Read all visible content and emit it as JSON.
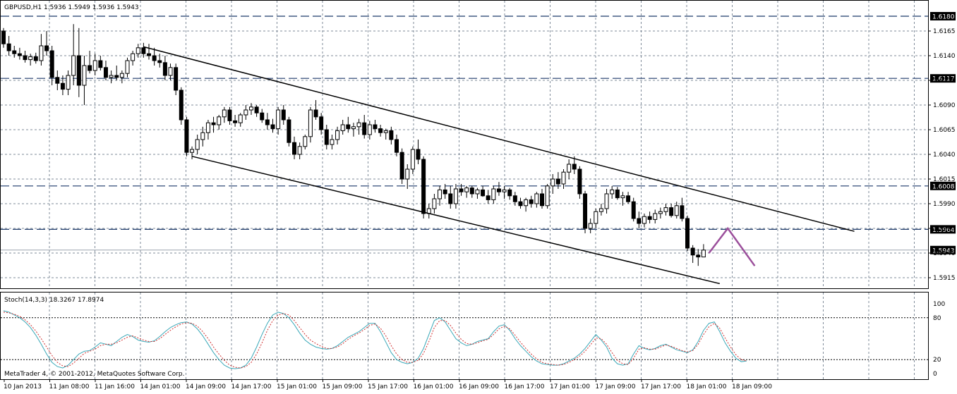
{
  "chart_data": [
    {
      "type": "candlestick",
      "title": "GBPUSD,H1  1.5936 1.5949 1.5936 1.5943",
      "y_ticks": [
        "1.6165",
        "1.6140",
        "1.6115",
        "1.6090",
        "1.6065",
        "1.6040",
        "1.6015",
        "1.5990",
        "1.5965",
        "1.5940",
        "1.5915"
      ],
      "ylim": [
        1.5905,
        1.6195
      ],
      "x_labels": [
        "10 Jan 2013",
        "11 Jan 08:00",
        "11 Jan 16:00",
        "14 Jan 01:00",
        "14 Jan 09:00",
        "14 Jan 17:00",
        "15 Jan 01:00",
        "15 Jan 09:00",
        "15 Jan 17:00",
        "16 Jan 01:00",
        "16 Jan 09:00",
        "16 Jan 17:00",
        "17 Jan 01:00",
        "17 Jan 09:00",
        "17 Jan 17:00",
        "18 Jan 01:00",
        "18 Jan 09:00"
      ],
      "levels": [
        {
          "value": 1.618,
          "label": "1.6180",
          "style": "dash"
        },
        {
          "value": 1.6117,
          "label": "1.6117",
          "style": "dash"
        },
        {
          "value": 1.6008,
          "label": "1.6008",
          "style": "dash"
        },
        {
          "value": 1.5964,
          "label": "1.5964",
          "style": "dash"
        },
        {
          "value": 1.5943,
          "label": "1.5943",
          "style": "solid"
        }
      ],
      "channel_upper": [
        {
          "bar": 26,
          "y": 1.6149
        },
        {
          "bar": 158,
          "y": 1.5962
        }
      ],
      "channel_lower": [
        {
          "bar": 35,
          "y": 1.6038
        },
        {
          "bar": 133,
          "y": 1.5909
        }
      ],
      "forecast_path": [
        {
          "bar": 131,
          "y": 1.594
        },
        {
          "bar": 134.5,
          "y": 1.5965
        },
        {
          "bar": 139.5,
          "y": 1.5927
        }
      ],
      "candles": [
        [
          1.6165,
          1.6168,
          1.6148,
          1.6152
        ],
        [
          1.6152,
          1.616,
          1.614,
          1.6145
        ],
        [
          1.6145,
          1.615,
          1.6138,
          1.6142
        ],
        [
          1.6142,
          1.6148,
          1.6136,
          1.614
        ],
        [
          1.614,
          1.6145,
          1.6133,
          1.6136
        ],
        [
          1.6136,
          1.6142,
          1.613,
          1.6139
        ],
        [
          1.6139,
          1.6143,
          1.6132,
          1.6135
        ],
        [
          1.6135,
          1.6162,
          1.613,
          1.615
        ],
        [
          1.615,
          1.6165,
          1.614,
          1.6145
        ],
        [
          1.6145,
          1.615,
          1.611,
          1.6118
        ],
        [
          1.6118,
          1.6125,
          1.6105,
          1.6112
        ],
        [
          1.6112,
          1.612,
          1.61,
          1.6106
        ],
        [
          1.6106,
          1.6125,
          1.61,
          1.612
        ],
        [
          1.612,
          1.6172,
          1.611,
          1.614
        ],
        [
          1.614,
          1.6168,
          1.6098,
          1.611
        ],
        [
          1.611,
          1.614,
          1.609,
          1.613
        ],
        [
          1.613,
          1.6145,
          1.6122,
          1.6125
        ],
        [
          1.6125,
          1.6142,
          1.612,
          1.6135
        ],
        [
          1.6135,
          1.614,
          1.6125,
          1.6128
        ],
        [
          1.6128,
          1.6135,
          1.6115,
          1.6118
        ],
        [
          1.6118,
          1.6125,
          1.6112,
          1.612
        ],
        [
          1.612,
          1.613,
          1.6115,
          1.6118
        ],
        [
          1.6118,
          1.6125,
          1.6112,
          1.6122
        ],
        [
          1.6122,
          1.6138,
          1.6118,
          1.6135
        ],
        [
          1.6135,
          1.6145,
          1.613,
          1.6142
        ],
        [
          1.6142,
          1.6152,
          1.6138,
          1.6148
        ],
        [
          1.6148,
          1.6153,
          1.6138,
          1.6142
        ],
        [
          1.6142,
          1.6152,
          1.6136,
          1.614
        ],
        [
          1.614,
          1.6148,
          1.613,
          1.6135
        ],
        [
          1.6135,
          1.6142,
          1.6128,
          1.6133
        ],
        [
          1.6133,
          1.614,
          1.6115,
          1.612
        ],
        [
          1.612,
          1.6132,
          1.6115,
          1.6128
        ],
        [
          1.6128,
          1.6132,
          1.61,
          1.6105
        ],
        [
          1.6105,
          1.6108,
          1.607,
          1.6075
        ],
        [
          1.6075,
          1.6078,
          1.6038,
          1.6042
        ],
        [
          1.6042,
          1.6048,
          1.6035,
          1.6045
        ],
        [
          1.6045,
          1.606,
          1.604,
          1.6055
        ],
        [
          1.6055,
          1.6068,
          1.6048,
          1.6062
        ],
        [
          1.6062,
          1.6075,
          1.6055,
          1.6072
        ],
        [
          1.6072,
          1.6078,
          1.6062,
          1.607
        ],
        [
          1.607,
          1.608,
          1.6065,
          1.6078
        ],
        [
          1.6078,
          1.6088,
          1.6072,
          1.6085
        ],
        [
          1.6085,
          1.6088,
          1.607,
          1.6074
        ],
        [
          1.6074,
          1.608,
          1.6068,
          1.6072
        ],
        [
          1.6072,
          1.6082,
          1.6068,
          1.608
        ],
        [
          1.608,
          1.609,
          1.6075,
          1.6085
        ],
        [
          1.6085,
          1.6092,
          1.608,
          1.6088
        ],
        [
          1.6088,
          1.609,
          1.6078,
          1.6082
        ],
        [
          1.6082,
          1.6086,
          1.6072,
          1.6075
        ],
        [
          1.6075,
          1.6082,
          1.6065,
          1.607
        ],
        [
          1.607,
          1.6076,
          1.6062,
          1.6066
        ],
        [
          1.6066,
          1.6088,
          1.606,
          1.6085
        ],
        [
          1.6085,
          1.609,
          1.607,
          1.6075
        ],
        [
          1.6075,
          1.6078,
          1.6048,
          1.6052
        ],
        [
          1.6052,
          1.6058,
          1.6035,
          1.604
        ],
        [
          1.604,
          1.6052,
          1.6035,
          1.6048
        ],
        [
          1.6048,
          1.606,
          1.6045,
          1.6058
        ],
        [
          1.6058,
          1.6088,
          1.6052,
          1.6085
        ],
        [
          1.6085,
          1.6095,
          1.6075,
          1.6078
        ],
        [
          1.6078,
          1.6082,
          1.606,
          1.6065
        ],
        [
          1.6065,
          1.607,
          1.6045,
          1.605
        ],
        [
          1.605,
          1.606,
          1.6045,
          1.6055
        ],
        [
          1.6055,
          1.6068,
          1.605,
          1.6064
        ],
        [
          1.6064,
          1.6075,
          1.606,
          1.607
        ],
        [
          1.607,
          1.6078,
          1.6062,
          1.6066
        ],
        [
          1.6066,
          1.6072,
          1.6058,
          1.6068
        ],
        [
          1.6068,
          1.6076,
          1.606,
          1.6072
        ],
        [
          1.6072,
          1.608,
          1.6056,
          1.606
        ],
        [
          1.606,
          1.6074,
          1.6055,
          1.607
        ],
        [
          1.607,
          1.6075,
          1.6062,
          1.6066
        ],
        [
          1.6066,
          1.607,
          1.6058,
          1.6062
        ],
        [
          1.6062,
          1.6066,
          1.6055,
          1.6064
        ],
        [
          1.6064,
          1.6068,
          1.605,
          1.6055
        ],
        [
          1.6055,
          1.606,
          1.6038,
          1.6042
        ],
        [
          1.6042,
          1.6046,
          1.601,
          1.6015
        ],
        [
          1.6015,
          1.603,
          1.6005,
          1.6025
        ],
        [
          1.6025,
          1.6048,
          1.602,
          1.6045
        ],
        [
          1.6045,
          1.6055,
          1.603,
          1.6035
        ],
        [
          1.6035,
          1.6038,
          1.5975,
          1.598
        ],
        [
          1.598,
          1.599,
          1.5975,
          1.5985
        ],
        [
          1.5985,
          1.6,
          1.598,
          1.5995
        ],
        [
          1.5995,
          1.6008,
          1.5988,
          1.6004
        ],
        [
          1.6004,
          1.601,
          1.5995,
          1.6
        ],
        [
          1.6,
          1.6008,
          1.5985,
          1.599
        ],
        [
          1.599,
          1.601,
          1.5985,
          1.6005
        ],
        [
          1.6005,
          1.601,
          1.5998,
          1.6002
        ],
        [
          1.6002,
          1.6008,
          1.5996,
          1.6006
        ],
        [
          1.6006,
          1.6008,
          1.5996,
          1.6
        ],
        [
          1.6,
          1.6006,
          1.5995,
          1.6004
        ],
        [
          1.6004,
          1.6008,
          1.5997,
          1.5998
        ],
        [
          1.5998,
          1.6004,
          1.599,
          1.5994
        ],
        [
          1.5994,
          1.6008,
          1.599,
          1.6005
        ],
        [
          1.6005,
          1.6012,
          1.5998,
          1.6002
        ],
        [
          1.6002,
          1.6008,
          1.5995,
          1.6004
        ],
        [
          1.6004,
          1.6006,
          1.5994,
          1.5998
        ],
        [
          1.5998,
          1.6002,
          1.5988,
          1.5992
        ],
        [
          1.5992,
          1.5996,
          1.5985,
          1.5988
        ],
        [
          1.5988,
          1.5996,
          1.5982,
          1.5994
        ],
        [
          1.5994,
          1.5998,
          1.5986,
          1.599
        ],
        [
          1.599,
          1.6002,
          1.5986,
          1.6
        ],
        [
          1.6,
          1.6005,
          1.5985,
          1.5988
        ],
        [
          1.5988,
          1.601,
          1.5985,
          1.6008
        ],
        [
          1.6008,
          1.602,
          1.6,
          1.6015
        ],
        [
          1.6015,
          1.6022,
          1.6005,
          1.601
        ],
        [
          1.601,
          1.6025,
          1.6005,
          1.6022
        ],
        [
          1.6022,
          1.6035,
          1.6015,
          1.603
        ],
        [
          1.603,
          1.6038,
          1.602,
          1.6025
        ],
        [
          1.6025,
          1.6028,
          1.5995,
          1.6
        ],
        [
          1.6,
          1.6003,
          1.596,
          1.5965
        ],
        [
          1.5965,
          1.5975,
          1.596,
          1.597
        ],
        [
          1.597,
          1.5985,
          1.5965,
          1.5982
        ],
        [
          1.5982,
          1.599,
          1.5978,
          1.5985
        ],
        [
          1.5985,
          1.6005,
          1.598,
          1.6
        ],
        [
          1.6,
          1.6008,
          1.5995,
          1.6004
        ],
        [
          1.6004,
          1.6007,
          1.5994,
          1.5996
        ],
        [
          1.5996,
          1.6002,
          1.5988,
          1.5998
        ],
        [
          1.5998,
          1.6002,
          1.599,
          1.5992
        ],
        [
          1.5992,
          1.5996,
          1.5972,
          1.5975
        ],
        [
          1.5975,
          1.5982,
          1.5965,
          1.597
        ],
        [
          1.597,
          1.598,
          1.5966,
          1.5977
        ],
        [
          1.5977,
          1.5982,
          1.597,
          1.5974
        ],
        [
          1.5974,
          1.5984,
          1.597,
          1.598
        ],
        [
          1.598,
          1.5986,
          1.5975,
          1.5982
        ],
        [
          1.5982,
          1.599,
          1.5978,
          1.5986
        ],
        [
          1.5986,
          1.599,
          1.5976,
          1.5978
        ],
        [
          1.5978,
          1.5992,
          1.5975,
          1.5988
        ],
        [
          1.5988,
          1.5996,
          1.5972,
          1.5975
        ],
        [
          1.5975,
          1.5978,
          1.5942,
          1.5945
        ],
        [
          1.5945,
          1.5948,
          1.593,
          1.5938
        ],
        [
          1.5938,
          1.5944,
          1.5927,
          1.5936
        ],
        [
          1.5936,
          1.5949,
          1.5936,
          1.5943
        ]
      ]
    },
    {
      "type": "line",
      "title": "Stoch(14,3,3) 18.3267 17.8974",
      "ylim": [
        0,
        100
      ],
      "y_ticks": [
        "100",
        "80",
        "20",
        "0"
      ],
      "levels": [
        80,
        20
      ],
      "series": [
        {
          "values": [
            90,
            88,
            84,
            80,
            74,
            66,
            55,
            42,
            28,
            16,
            10,
            8,
            12,
            20,
            28,
            32,
            33,
            38,
            44,
            42,
            40,
            46,
            52,
            56,
            53,
            48,
            46,
            45,
            47,
            53,
            60,
            66,
            70,
            73,
            74,
            71,
            64,
            54,
            42,
            30,
            20,
            12,
            8,
            7,
            8,
            12,
            22,
            38,
            56,
            72,
            84,
            88,
            86,
            80,
            70,
            58,
            48,
            42,
            38,
            36,
            35,
            36,
            40,
            46,
            52,
            56,
            60,
            66,
            72,
            72,
            60,
            45,
            30,
            20,
            16,
            14,
            16,
            22,
            36,
            56,
            76,
            80,
            74,
            62,
            50,
            44,
            40,
            42,
            46,
            48,
            50,
            60,
            68,
            70,
            62,
            50,
            40,
            32,
            24,
            18,
            14,
            13,
            12,
            12,
            14,
            18,
            22,
            28,
            36,
            46,
            56,
            48,
            38,
            22,
            14,
            12,
            14,
            28,
            40,
            36,
            34,
            36,
            40,
            42,
            38,
            34,
            32,
            30,
            34,
            46,
            62,
            72,
            74,
            60,
            44,
            32,
            22,
            17,
            18
          ]
        },
        {
          "values": [
            88,
            87,
            85,
            82,
            77,
            70,
            61,
            50,
            38,
            26,
            16,
            11,
            10,
            15,
            22,
            29,
            32,
            35,
            40,
            42,
            42,
            44,
            48,
            52,
            54,
            51,
            48,
            46,
            46,
            50,
            56,
            62,
            67,
            71,
            73,
            72,
            68,
            60,
            50,
            38,
            28,
            19,
            12,
            9,
            8,
            10,
            16,
            28,
            44,
            62,
            76,
            84,
            86,
            84,
            76,
            66,
            56,
            48,
            43,
            39,
            36,
            36,
            38,
            43,
            49,
            54,
            58,
            63,
            69,
            71,
            65,
            54,
            40,
            28,
            20,
            16,
            16,
            19,
            29,
            46,
            66,
            76,
            76,
            69,
            58,
            49,
            43,
            42,
            44,
            47,
            49,
            56,
            64,
            68,
            64,
            55,
            45,
            36,
            28,
            21,
            16,
            14,
            13,
            12,
            13,
            16,
            20,
            25,
            32,
            41,
            51,
            50,
            42,
            30,
            19,
            14,
            13,
            22,
            35,
            37,
            35,
            35,
            38,
            41,
            39,
            36,
            33,
            31,
            33,
            42,
            56,
            67,
            72,
            65,
            51,
            38,
            27,
            20,
            18
          ]
        }
      ]
    }
  ],
  "footer": "MetaTrader 4, © 2001-2012, MetaQuotes Software Corp.",
  "colors": {
    "background": "#ffffff",
    "grid": "#7f8b99",
    "bear_candle": "#000000",
    "bull_candle": "#ffffff",
    "level_dash": "#1f3a6b",
    "forecast": "#9b4f9b",
    "stoch_main": "#3aa8b8",
    "stoch_signal": "#d03030"
  }
}
